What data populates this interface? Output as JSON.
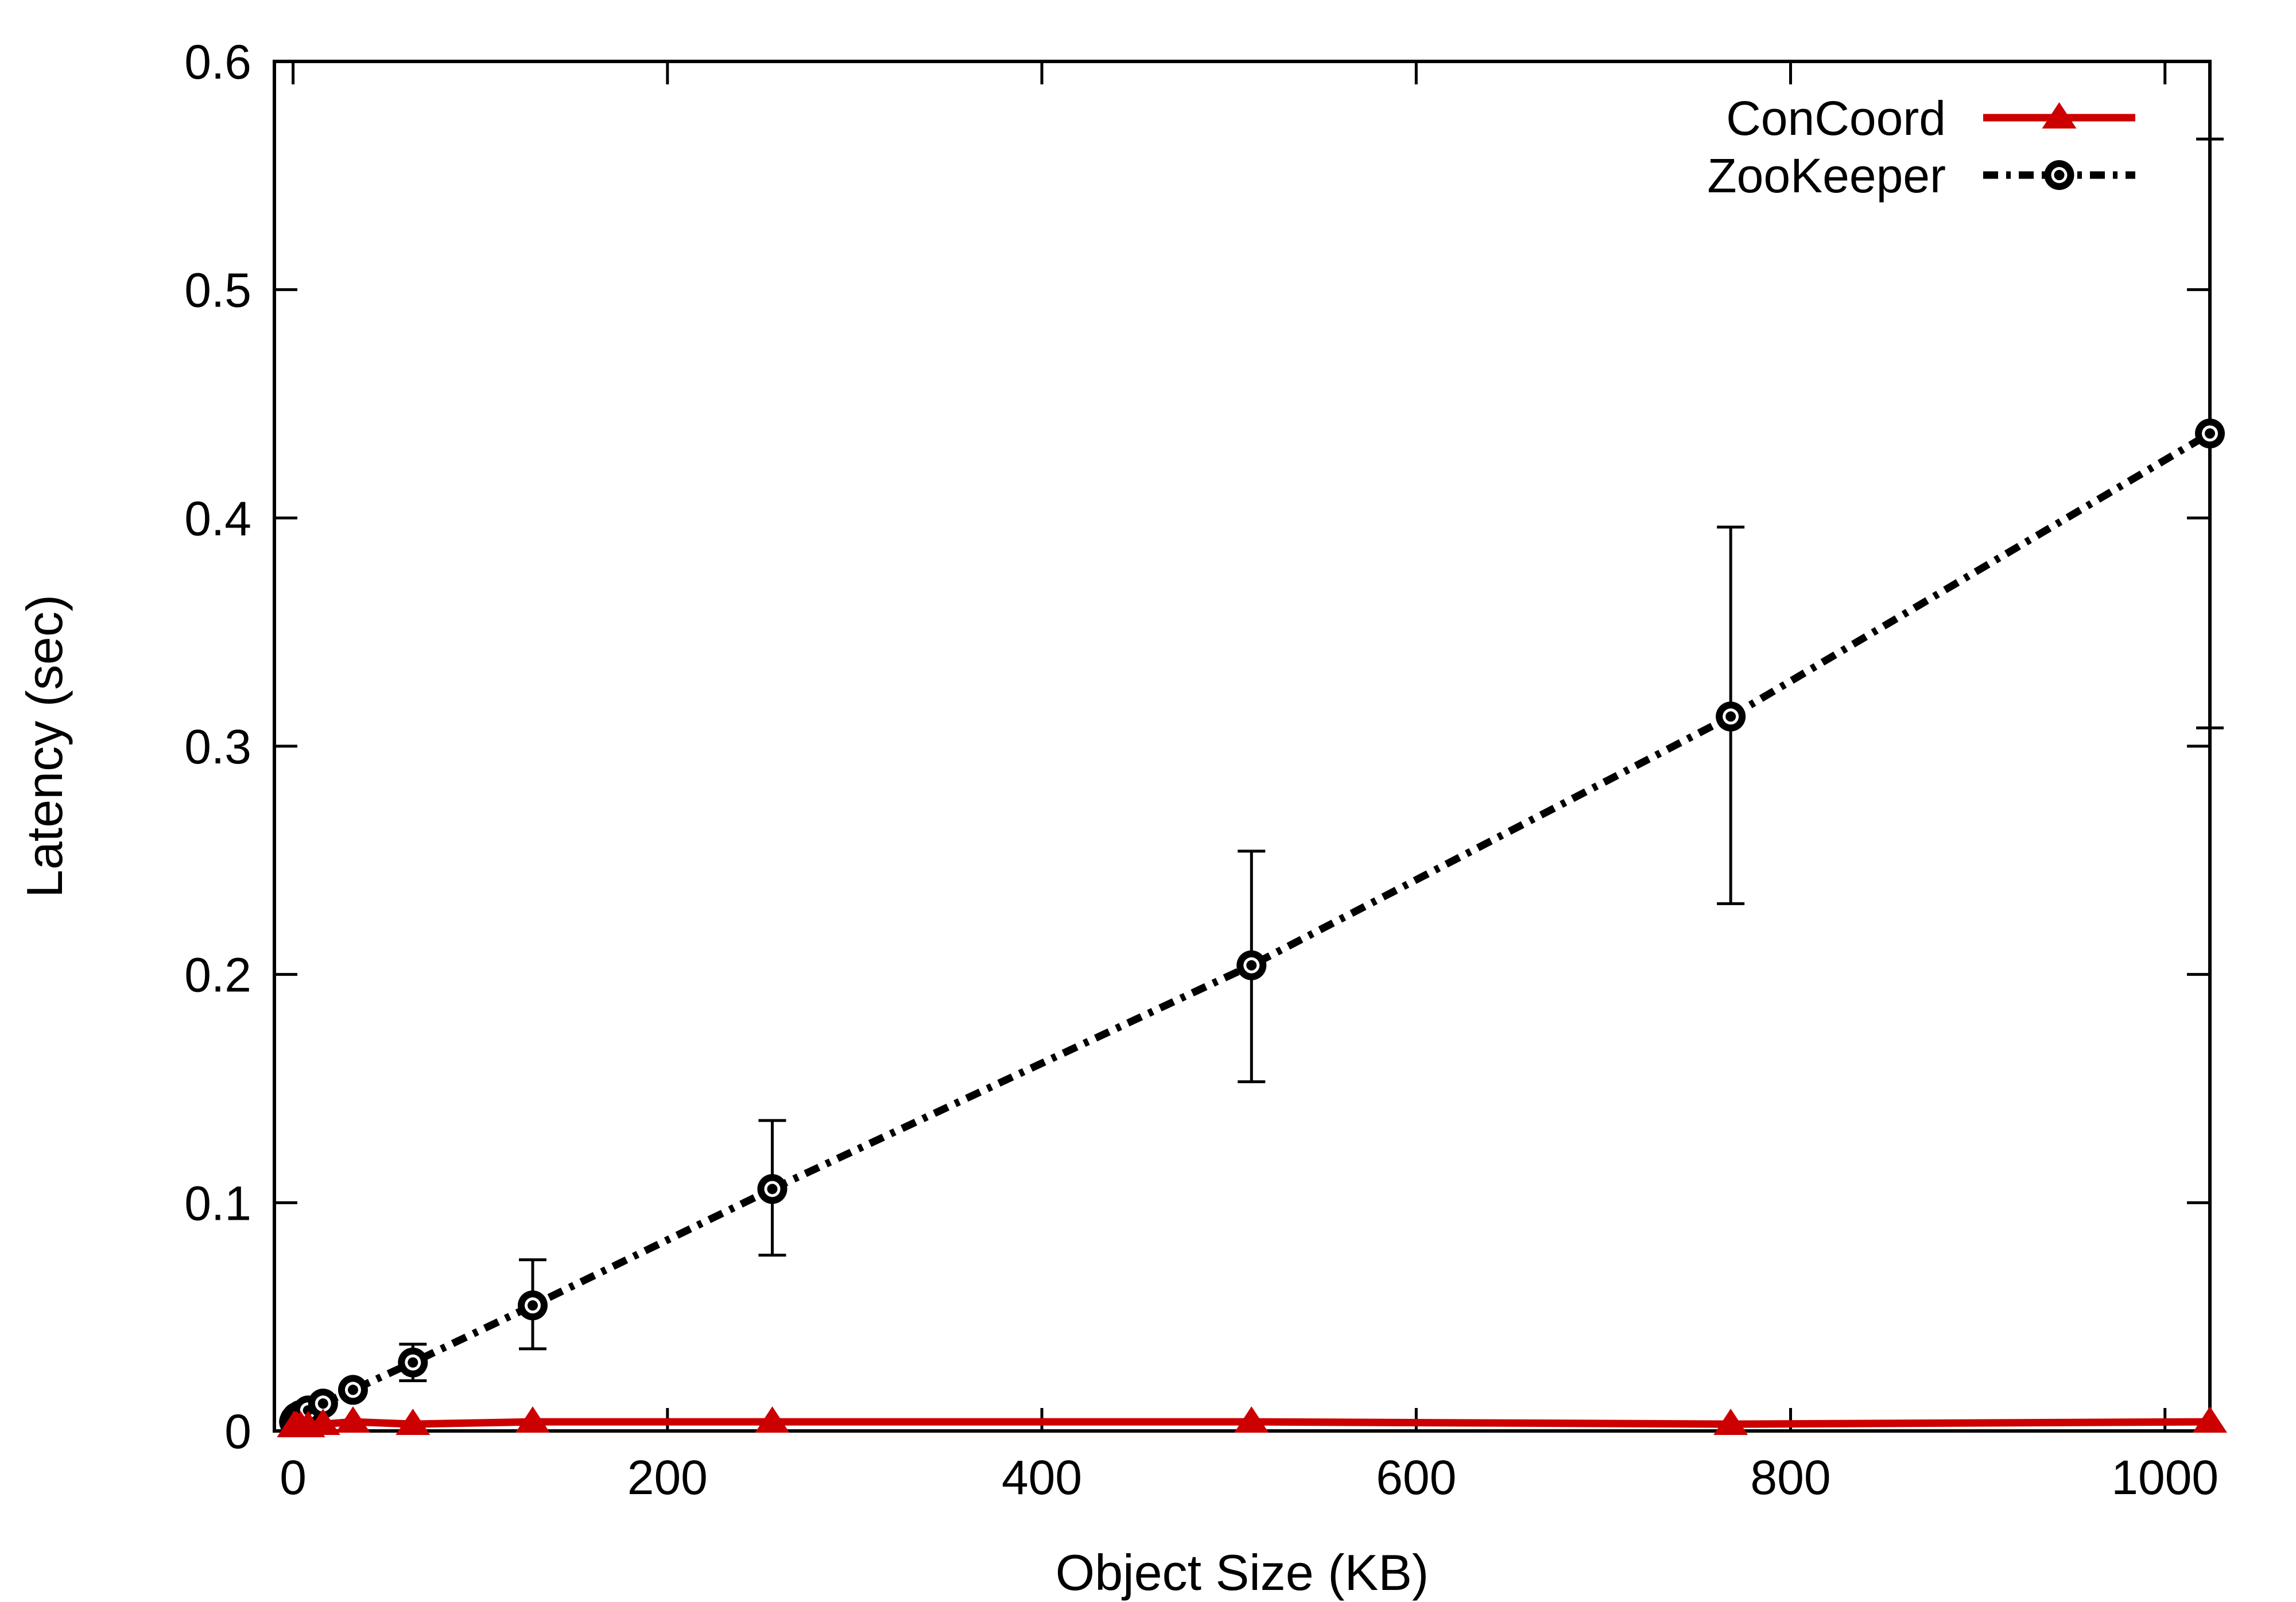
{
  "chart_data": {
    "type": "line",
    "title": "",
    "xlabel": "Object Size (KB)",
    "ylabel": "Latency (sec)",
    "xlim": [
      -10,
      1024
    ],
    "ylim": [
      0,
      0.6
    ],
    "xticks": [
      "0",
      "200",
      "400",
      "600",
      "800",
      "1000"
    ],
    "xtick_values": [
      0,
      200,
      400,
      600,
      800,
      1000
    ],
    "yticks": [
      "0",
      "0.1",
      "0.2",
      "0.3",
      "0.4",
      "0.5",
      "0.6"
    ],
    "ytick_values": [
      0,
      0.1,
      0.2,
      0.3,
      0.4,
      0.5,
      0.6
    ],
    "grid": false,
    "legend_position": "top-right",
    "series": [
      {
        "name": "ConCoord",
        "color": "#cc0000",
        "line_style": "solid",
        "marker": "triangle",
        "x": [
          0.5,
          1,
          2,
          4,
          8,
          16,
          32,
          64,
          128,
          256,
          512,
          768,
          1024
        ],
        "y": [
          0.002,
          0.002,
          0.002,
          0.002,
          0.002,
          0.003,
          0.004,
          0.003,
          0.004,
          0.004,
          0.004,
          0.003,
          0.004
        ]
      },
      {
        "name": "ZooKeeper",
        "color": "#000000",
        "line_style": "dash-dot",
        "marker": "circle",
        "x": [
          0.5,
          1,
          2,
          4,
          8,
          16,
          32,
          64,
          128,
          256,
          512,
          768,
          1024
        ],
        "y": [
          0.004,
          0.005,
          0.006,
          0.007,
          0.009,
          0.012,
          0.018,
          0.03,
          0.055,
          0.106,
          0.204,
          0.313,
          0.437
        ],
        "error_low": [
          0.004,
          0.005,
          0.006,
          0.007,
          0.009,
          0.012,
          0.016,
          0.022,
          0.036,
          0.077,
          0.153,
          0.231,
          0.308
        ],
        "error_high": [
          0.004,
          0.005,
          0.006,
          0.007,
          0.009,
          0.012,
          0.02,
          0.038,
          0.075,
          0.136,
          0.254,
          0.396,
          0.566
        ]
      }
    ]
  }
}
